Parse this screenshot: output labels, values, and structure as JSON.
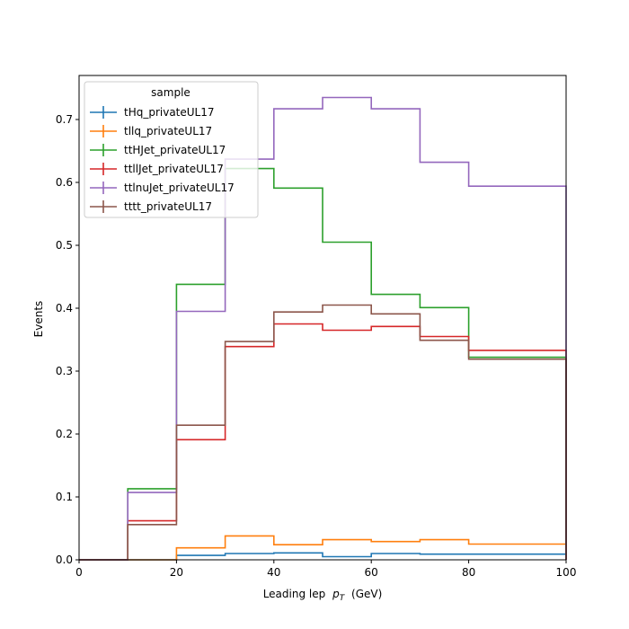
{
  "chart_data": {
    "type": "line",
    "style": "step-histogram",
    "xlabel": "Leading lep",
    "xlabel_math": "p",
    "xlabel_sub": "T",
    "xlabel_unit": "(GeV)",
    "ylabel": "Events",
    "xlim": [
      0,
      100
    ],
    "ylim": [
      0,
      0.77
    ],
    "xticks": [
      0,
      20,
      40,
      60,
      80,
      100
    ],
    "yticks": [
      0.0,
      0.1,
      0.2,
      0.3,
      0.4,
      0.5,
      0.6,
      0.7
    ],
    "bin_edges": [
      0,
      10,
      20,
      30,
      40,
      50,
      60,
      70,
      80,
      90,
      100
    ],
    "grid": false,
    "legend": {
      "title": "sample",
      "placement": "top-left"
    },
    "series": [
      {
        "name": "tHq_privateUL17",
        "color": "#1f77b4",
        "values": [
          0,
          0,
          0.007,
          0.01,
          0.011,
          0.005,
          0.01,
          0.009,
          0.009,
          0.009
        ]
      },
      {
        "name": "tllq_privateUL17",
        "color": "#ff7f0e",
        "values": [
          0,
          0,
          0.019,
          0.038,
          0.024,
          0.032,
          0.029,
          0.032,
          0.025,
          0.025
        ]
      },
      {
        "name": "ttHJet_privateUL17",
        "color": "#2ca02c",
        "values": [
          0,
          0.113,
          0.438,
          0.622,
          0.591,
          0.505,
          0.422,
          0.401,
          0.322,
          0.322
        ]
      },
      {
        "name": "ttllJet_privateUL17",
        "color": "#d62728",
        "values": [
          0,
          0.062,
          0.191,
          0.339,
          0.375,
          0.365,
          0.371,
          0.355,
          0.333,
          0.333
        ]
      },
      {
        "name": "ttlnuJet_privateUL17",
        "color": "#9467bd",
        "values": [
          0,
          0.107,
          0.395,
          0.637,
          0.717,
          0.735,
          0.717,
          0.632,
          0.594,
          0.594
        ]
      },
      {
        "name": "tttt_privateUL17",
        "color": "#8c564b",
        "values": [
          0,
          0.056,
          0.214,
          0.347,
          0.394,
          0.405,
          0.391,
          0.349,
          0.319,
          0.319
        ]
      }
    ]
  }
}
